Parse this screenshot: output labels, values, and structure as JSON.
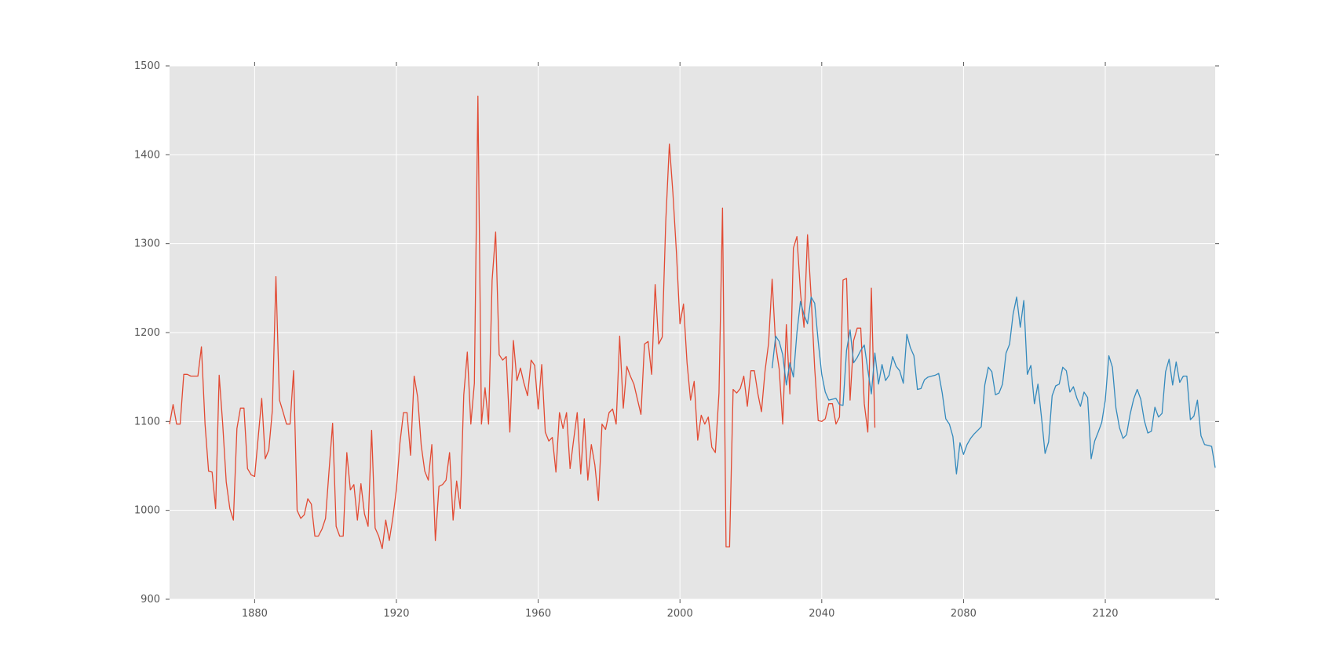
{
  "chart_data": {
    "type": "line",
    "title": "",
    "xlabel": "",
    "ylabel": "",
    "xlim": [
      1856,
      2151
    ],
    "ylim": [
      900,
      1500
    ],
    "xticks": [
      1880,
      1920,
      1960,
      2000,
      2040,
      2080,
      2120
    ],
    "yticks": [
      900,
      1000,
      1100,
      1200,
      1300,
      1400,
      1500
    ],
    "xtick_labels": [
      "1880",
      "1920",
      "1960",
      "2000",
      "2040",
      "2080",
      "2120"
    ],
    "ytick_labels": [
      "900",
      "1000",
      "1100",
      "1200",
      "1300",
      "1400",
      "1500"
    ],
    "grid": true,
    "background": "#e5e5e5",
    "series": [
      {
        "color": "#e24a33",
        "x_start": 1856,
        "values": [
          1097,
          1119,
          1097,
          1097,
          1153,
          1153,
          1151,
          1151,
          1151,
          1184,
          1097,
          1044,
          1043,
          1002,
          1152,
          1097,
          1032,
          1002,
          989,
          1092,
          1115,
          1115,
          1047,
          1040,
          1038,
          1082,
          1126,
          1058,
          1068,
          1112,
          1263,
          1124,
          1111,
          1097,
          1097,
          1157,
          1000,
          991,
          995,
          1013,
          1007,
          971,
          971,
          979,
          991,
          1045,
          1098,
          982,
          971,
          971,
          1065,
          1023,
          1029,
          989,
          1030,
          996,
          982,
          1090,
          980,
          971,
          957,
          989,
          966,
          992,
          1024,
          1076,
          1110,
          1110,
          1062,
          1151,
          1127,
          1073,
          1044,
          1034,
          1074,
          966,
          1027,
          1029,
          1034,
          1065,
          989,
          1033,
          1002,
          1130,
          1178,
          1097,
          1143,
          1466,
          1097,
          1138,
          1097,
          1259,
          1313,
          1175,
          1169,
          1173,
          1088,
          1191,
          1146,
          1160,
          1143,
          1129,
          1169,
          1163,
          1114,
          1164,
          1088,
          1078,
          1082,
          1043,
          1110,
          1092,
          1110,
          1047,
          1079,
          1110,
          1041,
          1103,
          1034,
          1074,
          1051,
          1011,
          1097,
          1091,
          1110,
          1114,
          1097,
          1196,
          1115,
          1162,
          1151,
          1142,
          1125,
          1108,
          1187,
          1190,
          1153,
          1254,
          1187,
          1195,
          1325,
          1412,
          1357,
          1290,
          1210,
          1232,
          1166,
          1124,
          1145,
          1079,
          1107,
          1097,
          1105,
          1071,
          1065,
          1132,
          1340,
          959,
          959,
          1136,
          1132,
          1137,
          1151,
          1117,
          1157,
          1157,
          1131,
          1111,
          1157,
          1188,
          1260,
          1186,
          1159,
          1097,
          1209,
          1131,
          1295,
          1308,
          1245,
          1206,
          1310,
          1240,
          1160,
          1101,
          1100,
          1103,
          1120,
          1120,
          1097,
          1105,
          1259,
          1261,
          1124,
          1191,
          1205,
          1205,
          1120,
          1088,
          1250,
          1093
        ]
      },
      {
        "color": "#348abd",
        "x_start": 2026,
        "values": [
          1160,
          1196,
          1190,
          1175,
          1141,
          1166,
          1150,
          1200,
          1235,
          1220,
          1210,
          1240,
          1233,
          1190,
          1153,
          1133,
          1124,
          1125,
          1126,
          1119,
          1118,
          1180,
          1203,
          1166,
          1172,
          1180,
          1186,
          1158,
          1131,
          1177,
          1142,
          1164,
          1146,
          1152,
          1173,
          1162,
          1157,
          1143,
          1198,
          1183,
          1174,
          1136,
          1137,
          1147,
          1150,
          1151,
          1152,
          1154,
          1132,
          1103,
          1097,
          1083,
          1041,
          1076,
          1063,
          1074,
          1081,
          1086,
          1090,
          1094,
          1141,
          1161,
          1156,
          1130,
          1132,
          1142,
          1177,
          1187,
          1221,
          1240,
          1206,
          1236,
          1153,
          1163,
          1120,
          1142,
          1104,
          1064,
          1077,
          1129,
          1140,
          1142,
          1161,
          1157,
          1133,
          1139,
          1126,
          1117,
          1133,
          1127,
          1058,
          1078,
          1088,
          1099,
          1124,
          1174,
          1161,
          1115,
          1093,
          1081,
          1085,
          1108,
          1125,
          1136,
          1125,
          1101,
          1087,
          1089,
          1116,
          1105,
          1109,
          1156,
          1170,
          1141,
          1167,
          1144,
          1151,
          1151,
          1102,
          1106,
          1124,
          1084,
          1074,
          1073,
          1072,
          1048
        ]
      }
    ]
  }
}
